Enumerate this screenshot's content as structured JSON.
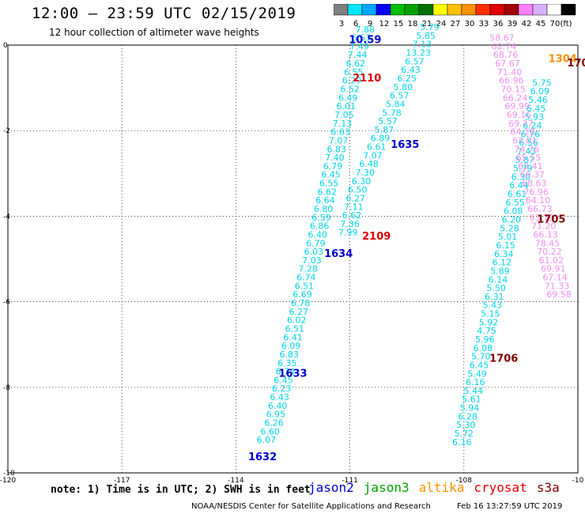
{
  "header": {
    "title": "12:00 – 23:59 UTC 02/15/2019",
    "subtitle": "12 hour collection of altimeter wave heights"
  },
  "color_scale": {
    "unit_label": "(ft)",
    "stops": [
      {
        "label": "3",
        "color": "#808080"
      },
      {
        "label": "6",
        "color": "#00e5ff"
      },
      {
        "label": "9",
        "color": "#00a8ff"
      },
      {
        "label": "12",
        "color": "#0000ff"
      },
      {
        "label": "15",
        "color": "#00c000"
      },
      {
        "label": "18",
        "color": "#00a000"
      },
      {
        "label": "21",
        "color": "#007000"
      },
      {
        "label": "24",
        "color": "#ffff00"
      },
      {
        "label": "27",
        "color": "#ffc000"
      },
      {
        "label": "30",
        "color": "#ff9000"
      },
      {
        "label": "33",
        "color": "#ff3000"
      },
      {
        "label": "36",
        "color": "#e00000"
      },
      {
        "label": "39",
        "color": "#a00000"
      },
      {
        "label": "42",
        "color": "#ff80ff"
      },
      {
        "label": "45",
        "color": "#d8b0ff"
      },
      {
        "label": "70",
        "color": "#ffffff"
      },
      {
        "label": "",
        "color": "#000000"
      }
    ]
  },
  "footer": {
    "note": "note: 1) Time is in UTC; 2) SWH is in feet",
    "legend": [
      {
        "label": "jason2",
        "color": "#0000cc"
      },
      {
        "label": "jason3",
        "color": "#00a000"
      },
      {
        "label": "altika",
        "color": "#ff9000"
      },
      {
        "label": "cryosat",
        "color": "#e00000"
      },
      {
        "label": "s3a",
        "color": "#800000"
      }
    ],
    "credit": "NOAA/NESDIS Center for Satellite Applications and Research",
    "timestamp": "Feb 16 13:27:59 UTC 2019"
  },
  "chart_data": {
    "type": "scatter",
    "xlim": [
      -120,
      -105
    ],
    "ylim": [
      -10,
      0
    ],
    "xticks": [
      "-120",
      "-117",
      "-114",
      "-111",
      "-108",
      "-10"
    ],
    "yticks": [
      "0",
      "-2",
      "-4",
      "-6",
      "-8",
      "-10"
    ],
    "grid": true,
    "tracks": [
      {
        "color": "#00d5e8",
        "points": [
          {
            "x": -113.2,
            "y": -9.3,
            "v": "6.07"
          },
          {
            "x": -113.1,
            "y": -9.1,
            "v": "6.60"
          },
          {
            "x": -113.0,
            "y": -8.9,
            "v": "6.26"
          },
          {
            "x": -112.95,
            "y": -8.7,
            "v": "6.95"
          },
          {
            "x": -112.9,
            "y": -8.5,
            "v": "6.40"
          },
          {
            "x": -112.85,
            "y": -8.3,
            "v": "6.43"
          },
          {
            "x": -112.8,
            "y": -8.1,
            "v": "6.23"
          },
          {
            "x": -112.75,
            "y": -7.9,
            "v": "6.45"
          },
          {
            "x": -112.7,
            "y": -7.7,
            "v": "6.74"
          },
          {
            "x": -112.65,
            "y": -7.5,
            "v": "6.35"
          },
          {
            "x": -112.6,
            "y": -7.3,
            "v": "6.83"
          },
          {
            "x": -112.55,
            "y": -7.1,
            "v": "6.09"
          },
          {
            "x": -112.5,
            "y": -6.9,
            "v": "6.41"
          },
          {
            "x": -112.45,
            "y": -6.7,
            "v": "6.51"
          },
          {
            "x": -112.4,
            "y": -6.5,
            "v": "6.02"
          },
          {
            "x": -112.35,
            "y": -6.3,
            "v": "6.27"
          },
          {
            "x": -112.3,
            "y": -6.1,
            "v": "6.78"
          },
          {
            "x": -112.25,
            "y": -5.9,
            "v": "6.69"
          },
          {
            "x": -112.2,
            "y": -5.7,
            "v": "6.51"
          },
          {
            "x": -112.15,
            "y": -5.5,
            "v": "6.74"
          },
          {
            "x": -112.1,
            "y": -5.3,
            "v": "7.28"
          },
          {
            "x": -112.0,
            "y": -5.1,
            "v": "7.03"
          },
          {
            "x": -111.95,
            "y": -4.9,
            "v": "6.03"
          },
          {
            "x": -111.9,
            "y": -4.7,
            "v": "6.79"
          },
          {
            "x": -111.85,
            "y": -4.5,
            "v": "6.40"
          },
          {
            "x": -111.8,
            "y": -4.3,
            "v": "6.86"
          },
          {
            "x": -111.75,
            "y": -4.1,
            "v": "6.59"
          },
          {
            "x": -111.7,
            "y": -3.9,
            "v": "6.80"
          },
          {
            "x": -111.65,
            "y": -3.7,
            "v": "6.64"
          },
          {
            "x": -111.6,
            "y": -3.5,
            "v": "6.62"
          },
          {
            "x": -111.55,
            "y": -3.3,
            "v": "6.55"
          },
          {
            "x": -111.5,
            "y": -3.1,
            "v": "6.45"
          },
          {
            "x": -111.45,
            "y": -2.9,
            "v": "6.79"
          },
          {
            "x": -111.4,
            "y": -2.7,
            "v": "7.40"
          },
          {
            "x": -111.35,
            "y": -2.5,
            "v": "6.83"
          },
          {
            "x": -111.3,
            "y": -2.3,
            "v": "7.07"
          },
          {
            "x": -111.25,
            "y": -2.1,
            "v": "6.63"
          },
          {
            "x": -111.2,
            "y": -1.9,
            "v": "7.13"
          },
          {
            "x": -111.15,
            "y": -1.7,
            "v": "7.05"
          },
          {
            "x": -111.1,
            "y": -1.5,
            "v": "6.01"
          },
          {
            "x": -111.05,
            "y": -1.3,
            "v": "6.49"
          },
          {
            "x": -111.0,
            "y": -1.1,
            "v": "6.52"
          },
          {
            "x": -110.95,
            "y": -0.9,
            "v": "6.29"
          },
          {
            "x": -110.9,
            "y": -0.7,
            "v": "6.55"
          },
          {
            "x": -110.85,
            "y": -0.5,
            "v": "6.62"
          },
          {
            "x": -110.8,
            "y": -0.3,
            "v": "7.44"
          },
          {
            "x": -110.75,
            "y": -0.1,
            "v": "7.49"
          },
          {
            "x": -110.7,
            "y": 0.1,
            "v": "6.53"
          },
          {
            "x": -110.6,
            "y": 0.3,
            "v": "7.88"
          }
        ]
      },
      {
        "color": "#00d5e8",
        "points": [
          {
            "x": -111.05,
            "y": -4.45,
            "v": "7.99"
          },
          {
            "x": -111.0,
            "y": -4.25,
            "v": "7.36"
          },
          {
            "x": -110.95,
            "y": -4.05,
            "v": "6.62"
          },
          {
            "x": -110.9,
            "y": -3.85,
            "v": "7.11"
          },
          {
            "x": -110.85,
            "y": -3.65,
            "v": "6.27"
          },
          {
            "x": -110.8,
            "y": -3.45,
            "v": "6.50"
          },
          {
            "x": -110.7,
            "y": -3.25,
            "v": "6.30"
          },
          {
            "x": -110.6,
            "y": -3.05,
            "v": "7.30"
          },
          {
            "x": -110.5,
            "y": -2.85,
            "v": "6.48"
          },
          {
            "x": -110.4,
            "y": -2.65,
            "v": "7.07"
          },
          {
            "x": -110.3,
            "y": -2.45,
            "v": "6.61"
          },
          {
            "x": -110.2,
            "y": -2.25,
            "v": "6.89"
          },
          {
            "x": -110.1,
            "y": -2.05,
            "v": "5.87"
          },
          {
            "x": -110.0,
            "y": -1.85,
            "v": "5.57"
          },
          {
            "x": -109.9,
            "y": -1.65,
            "v": "5.78"
          },
          {
            "x": -109.8,
            "y": -1.45,
            "v": "5.84"
          },
          {
            "x": -109.7,
            "y": -1.25,
            "v": "6.57"
          },
          {
            "x": -109.6,
            "y": -1.05,
            "v": "5.80"
          },
          {
            "x": -109.5,
            "y": -0.85,
            "v": "6.25"
          },
          {
            "x": -109.4,
            "y": -0.65,
            "v": "6.43"
          },
          {
            "x": -109.3,
            "y": -0.45,
            "v": "6.57"
          },
          {
            "x": -109.2,
            "y": -0.25,
            "v": "13.23"
          },
          {
            "x": -109.1,
            "y": -0.05,
            "v": "7.13"
          },
          {
            "x": -109.0,
            "y": 0.15,
            "v": "5.85"
          },
          {
            "x": -108.9,
            "y": 0.35,
            "v": "5.79"
          }
        ]
      },
      {
        "color": "#00d5e8",
        "points": [
          {
            "x": -108.05,
            "y": -9.35,
            "v": "6.16"
          },
          {
            "x": -108.0,
            "y": -9.15,
            "v": "5.72"
          },
          {
            "x": -107.95,
            "y": -8.95,
            "v": "5.30"
          },
          {
            "x": -107.9,
            "y": -8.75,
            "v": "6.28"
          },
          {
            "x": -107.85,
            "y": -8.55,
            "v": "5.94"
          },
          {
            "x": -107.8,
            "y": -8.35,
            "v": "5.61"
          },
          {
            "x": -107.75,
            "y": -8.15,
            "v": "5.44"
          },
          {
            "x": -107.7,
            "y": -7.95,
            "v": "6.16"
          },
          {
            "x": -107.65,
            "y": -7.75,
            "v": "5.49"
          },
          {
            "x": -107.6,
            "y": -7.55,
            "v": "6.45"
          },
          {
            "x": -107.55,
            "y": -7.35,
            "v": "5.70"
          },
          {
            "x": -107.5,
            "y": -7.15,
            "v": "6.08"
          },
          {
            "x": -107.45,
            "y": -6.95,
            "v": "5.96"
          },
          {
            "x": -107.4,
            "y": -6.75,
            "v": "4.75"
          },
          {
            "x": -107.35,
            "y": -6.55,
            "v": "5.92"
          },
          {
            "x": -107.3,
            "y": -6.35,
            "v": "5.15"
          },
          {
            "x": -107.25,
            "y": -6.15,
            "v": "5.43"
          },
          {
            "x": -107.2,
            "y": -5.95,
            "v": "6.31"
          },
          {
            "x": -107.15,
            "y": -5.75,
            "v": "5.50"
          },
          {
            "x": -107.1,
            "y": -5.55,
            "v": "6.14"
          },
          {
            "x": -107.05,
            "y": -5.35,
            "v": "5.89"
          },
          {
            "x": -107.0,
            "y": -5.15,
            "v": "6.12"
          },
          {
            "x": -106.95,
            "y": -4.95,
            "v": "6.34"
          },
          {
            "x": -106.9,
            "y": -4.75,
            "v": "6.15"
          },
          {
            "x": -106.85,
            "y": -4.55,
            "v": "5.01"
          },
          {
            "x": -106.8,
            "y": -4.35,
            "v": "5.28"
          },
          {
            "x": -106.75,
            "y": -4.15,
            "v": "6.20"
          },
          {
            "x": -106.7,
            "y": -3.95,
            "v": "6.08"
          },
          {
            "x": -106.65,
            "y": -3.75,
            "v": "6.55"
          },
          {
            "x": -106.6,
            "y": -3.55,
            "v": "6.61"
          },
          {
            "x": -106.55,
            "y": -3.35,
            "v": "6.44"
          },
          {
            "x": -106.5,
            "y": -3.15,
            "v": "6.30"
          },
          {
            "x": -106.45,
            "y": -2.95,
            "v": "5.79"
          },
          {
            "x": -106.4,
            "y": -2.75,
            "v": "5.87"
          },
          {
            "x": -106.35,
            "y": -2.55,
            "v": "7.43"
          },
          {
            "x": -106.3,
            "y": -2.35,
            "v": "6.56"
          },
          {
            "x": -106.25,
            "y": -2.15,
            "v": "6.76"
          },
          {
            "x": -106.2,
            "y": -1.95,
            "v": "6.24"
          },
          {
            "x": -106.15,
            "y": -1.75,
            "v": "5.93"
          },
          {
            "x": -106.1,
            "y": -1.55,
            "v": "6.45"
          },
          {
            "x": -106.05,
            "y": -1.35,
            "v": "5.46"
          },
          {
            "x": -106.0,
            "y": -1.15,
            "v": "6.09"
          },
          {
            "x": -105.95,
            "y": -0.95,
            "v": "5.75"
          }
        ]
      },
      {
        "color": "#ee90ee",
        "points": [
          {
            "x": -107.0,
            "y": 0.1,
            "v": "58.67"
          },
          {
            "x": -106.95,
            "y": -0.1,
            "v": "68.74"
          },
          {
            "x": -106.9,
            "y": -0.3,
            "v": "68.76"
          },
          {
            "x": -106.85,
            "y": -0.5,
            "v": "67.67"
          },
          {
            "x": -106.8,
            "y": -0.7,
            "v": "71.40"
          },
          {
            "x": -106.75,
            "y": -0.9,
            "v": "66.96"
          },
          {
            "x": -106.7,
            "y": -1.1,
            "v": "70.15"
          },
          {
            "x": -106.65,
            "y": -1.3,
            "v": "66.24"
          },
          {
            "x": -106.6,
            "y": -1.5,
            "v": "69.99"
          },
          {
            "x": -106.55,
            "y": -1.7,
            "v": "69.16"
          },
          {
            "x": -106.5,
            "y": -1.9,
            "v": "69.37"
          },
          {
            "x": -106.45,
            "y": -2.1,
            "v": "64.28"
          },
          {
            "x": -106.4,
            "y": -2.3,
            "v": "63.01"
          },
          {
            "x": -106.35,
            "y": -2.5,
            "v": "74.76"
          },
          {
            "x": -106.3,
            "y": -2.7,
            "v": "65.55"
          },
          {
            "x": -106.25,
            "y": -2.9,
            "v": "62.41"
          },
          {
            "x": -106.2,
            "y": -3.1,
            "v": "69.37"
          },
          {
            "x": -106.15,
            "y": -3.3,
            "v": "68.63"
          },
          {
            "x": -106.1,
            "y": -3.5,
            "v": "76.96"
          },
          {
            "x": -106.05,
            "y": -3.7,
            "v": "64.10"
          },
          {
            "x": -106.0,
            "y": -3.9,
            "v": "66.73"
          },
          {
            "x": -105.95,
            "y": -4.1,
            "v": "63.79"
          },
          {
            "x": -105.9,
            "y": -4.3,
            "v": "71.20"
          },
          {
            "x": -105.85,
            "y": -4.5,
            "v": "66.13"
          },
          {
            "x": -105.8,
            "y": -4.7,
            "v": "78.45"
          },
          {
            "x": -105.75,
            "y": -4.9,
            "v": "70.22"
          },
          {
            "x": -105.7,
            "y": -5.1,
            "v": "61.02"
          },
          {
            "x": -105.65,
            "y": -5.3,
            "v": "69.91"
          },
          {
            "x": -105.6,
            "y": -5.5,
            "v": "67.14"
          },
          {
            "x": -105.55,
            "y": -5.7,
            "v": "71.33"
          },
          {
            "x": -105.5,
            "y": -5.9,
            "v": "69.58"
          }
        ]
      }
    ],
    "pass_labels": [
      {
        "x": -113.3,
        "y": -9.7,
        "v": "1632",
        "color": "#0000cc"
      },
      {
        "x": -112.5,
        "y": -7.75,
        "v": "1633",
        "color": "#0000cc"
      },
      {
        "x": -111.3,
        "y": -4.95,
        "v": "1634",
        "color": "#0000cc"
      },
      {
        "x": -109.55,
        "y": -2.4,
        "v": "1635",
        "color": "#0000cc"
      },
      {
        "x": -110.3,
        "y": -4.55,
        "v": "2109",
        "color": "#e00000"
      },
      {
        "x": -110.55,
        "y": -0.85,
        "v": "2110",
        "color": "#e00000"
      },
      {
        "x": -106.95,
        "y": -7.4,
        "v": "1706",
        "color": "#800000"
      },
      {
        "x": -105.7,
        "y": -4.15,
        "v": "1705",
        "color": "#800000"
      },
      {
        "x": -105.4,
        "y": -0.4,
        "v": "1304",
        "color": "#ff9000"
      },
      {
        "x": -105.0,
        "y": -0.5,
        "v": "170",
        "color": "#800000"
      },
      {
        "x": -110.6,
        "y": 0.05,
        "v": "10.59",
        "color": "#0000cc"
      }
    ]
  }
}
